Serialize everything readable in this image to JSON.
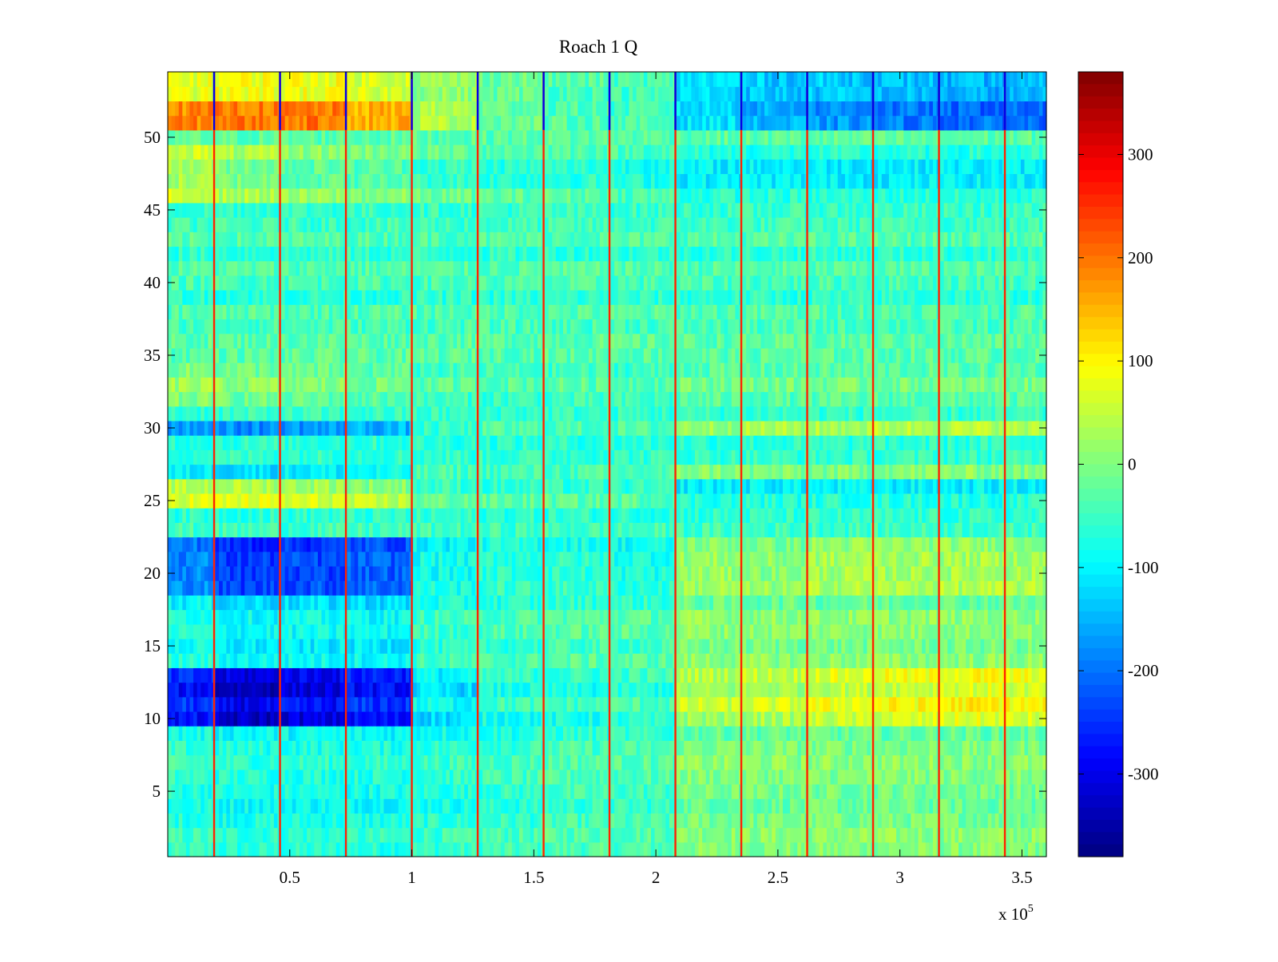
{
  "chart_data": {
    "type": "heatmap",
    "title": "Roach 1 Q",
    "xlabel": "",
    "ylabel": "",
    "x_multiplier_label": "x 10",
    "x_multiplier_exponent": "5",
    "xlim": [
      0,
      3.6
    ],
    "ylim": [
      0.5,
      54.5
    ],
    "xticks": [
      0.5,
      1,
      1.5,
      2,
      2.5,
      3,
      3.5
    ],
    "xtick_labels": [
      "0.5",
      "1",
      "1.5",
      "2",
      "2.5",
      "3",
      "3.5"
    ],
    "yticks": [
      5,
      10,
      15,
      20,
      25,
      30,
      35,
      40,
      45,
      50
    ],
    "ytick_labels": [
      "5",
      "10",
      "15",
      "20",
      "25",
      "30",
      "35",
      "40",
      "45",
      "50"
    ],
    "rows": 54,
    "colormap": "jet",
    "clim": [
      -380,
      380
    ],
    "colorbar_ticks": [
      300,
      200,
      100,
      0,
      -100,
      -200,
      -300
    ],
    "colorbar_tick_labels": [
      "300",
      "200",
      "100",
      "0",
      "-100",
      "-200",
      "-300"
    ],
    "segment_boundaries_x": [
      0.19,
      0.46,
      0.73,
      1.0,
      1.27,
      1.54,
      1.81,
      2.08,
      2.35,
      2.62,
      2.89,
      3.16,
      3.43
    ],
    "segment_bounds_x": [
      0,
      0.19,
      0.46,
      0.73,
      1.0,
      1.27,
      1.54,
      1.81,
      2.08,
      2.35,
      2.62,
      2.89,
      3.16,
      3.43,
      3.6
    ],
    "segment_row_offsets": [
      {
        "rows": [
          51,
          52
        ],
        "values": [
          240,
          250,
          250,
          210,
          90,
          40,
          20,
          10,
          -60,
          -100,
          -120,
          -140,
          -150,
          -150
        ]
      },
      {
        "rows": [
          53,
          54
        ],
        "values": [
          120,
          130,
          130,
          110,
          60,
          30,
          10,
          0,
          -70,
          -90,
          -90,
          -100,
          -110,
          -110
        ]
      },
      {
        "rows": [
          46,
          47,
          48,
          49
        ],
        "values": [
          90,
          60,
          40,
          30,
          10,
          0,
          0,
          -10,
          -40,
          -40,
          -40,
          -40,
          -40,
          -40
        ]
      },
      {
        "rows": [
          19,
          20,
          21,
          22
        ],
        "values": [
          -140,
          -200,
          -190,
          -170,
          -40,
          -20,
          -20,
          -30,
          60,
          50,
          70,
          70,
          70,
          70
        ]
      },
      {
        "rows": [
          10,
          11,
          12,
          13
        ],
        "values": [
          -220,
          -270,
          -250,
          -220,
          -60,
          -20,
          -20,
          -10,
          80,
          90,
          110,
          120,
          130,
          120
        ]
      },
      {
        "rows": [
          25,
          26
        ],
        "values": [
          100,
          100,
          90,
          70,
          10,
          0,
          0,
          0,
          -40,
          -40,
          -40,
          -40,
          -40,
          -40
        ]
      },
      {
        "rows": [
          30
        ],
        "values": [
          -120,
          -140,
          -130,
          -110,
          -20,
          0,
          0,
          0,
          60,
          70,
          70,
          80,
          80,
          70
        ]
      },
      {
        "rows": [
          27
        ],
        "values": [
          -60,
          -70,
          -60,
          -50,
          0,
          0,
          0,
          0,
          50,
          40,
          40,
          50,
          50,
          40
        ]
      },
      {
        "rows": [
          32,
          33,
          34
        ],
        "values": [
          50,
          40,
          30,
          20,
          0,
          0,
          0,
          0,
          20,
          20,
          20,
          20,
          20,
          20
        ]
      },
      {
        "rows": [
          1,
          2,
          3,
          4,
          5,
          6,
          7,
          8,
          9
        ],
        "values": [
          -20,
          -30,
          -30,
          -30,
          -20,
          -10,
          0,
          0,
          40,
          40,
          40,
          40,
          40,
          40
        ]
      },
      {
        "rows": [
          14,
          15,
          16,
          17,
          18
        ],
        "values": [
          -40,
          -60,
          -60,
          -60,
          -20,
          -10,
          0,
          0,
          40,
          40,
          40,
          40,
          40,
          40
        ]
      }
    ]
  }
}
